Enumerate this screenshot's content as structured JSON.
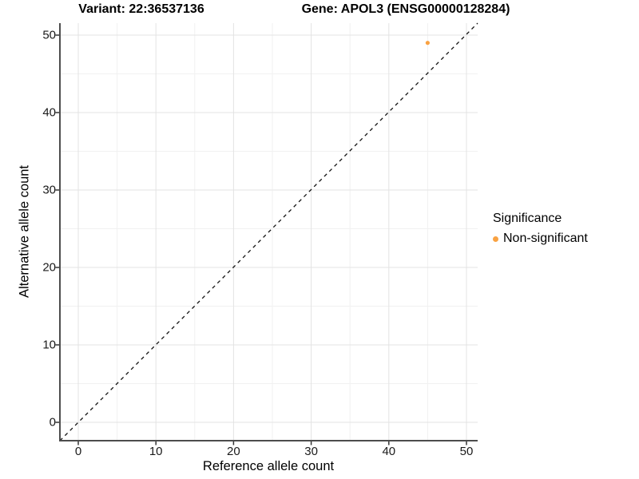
{
  "titles": {
    "variant": "Variant: 22:36537136",
    "gene": "Gene: APOL3 (ENSG00000128284)"
  },
  "axes": {
    "x": {
      "label": "Reference allele count",
      "ticks": [
        0,
        10,
        20,
        30,
        40,
        50
      ]
    },
    "y": {
      "label": "Alternative allele count",
      "ticks": [
        0,
        10,
        20,
        30,
        40,
        50
      ]
    }
  },
  "legend": {
    "title": "Significance",
    "items": [
      {
        "label": "Non-significant",
        "color": "#F9A242",
        "marker": "point-icon"
      }
    ]
  },
  "colors": {
    "background": "#ffffff",
    "grid_major": "#e3e3e3",
    "grid_minor": "#f1f1f1",
    "axis_line": "#4d4d4d",
    "tick_mark": "#333333",
    "reference_line": "#111111",
    "point": "#F9A242"
  },
  "chart_data": {
    "type": "scatter",
    "title": "Variant: 22:36537136    Gene: APOL3 (ENSG00000128284)",
    "xlabel": "Reference allele count",
    "ylabel": "Alternative allele count",
    "xlim": [
      -2.4,
      51.5
    ],
    "ylim": [
      -2.4,
      51.6
    ],
    "x_ticks": [
      0,
      10,
      20,
      30,
      40,
      50
    ],
    "y_ticks": [
      0,
      10,
      20,
      30,
      40,
      50
    ],
    "grid": {
      "major_x": [
        0,
        10,
        20,
        30,
        40,
        50
      ],
      "minor_x": [
        5,
        15,
        25,
        35,
        45
      ],
      "major_y": [
        0,
        10,
        20,
        30,
        40,
        50
      ],
      "minor_y": [
        5,
        15,
        25,
        35,
        45
      ]
    },
    "legend_position": "right",
    "series": [
      {
        "name": "Non-significant",
        "color": "#F9A242",
        "points": [
          {
            "x": 45,
            "y": 49
          }
        ]
      }
    ],
    "reference_line": {
      "style": "dashed",
      "equation": "y = x",
      "color": "#111111"
    }
  }
}
